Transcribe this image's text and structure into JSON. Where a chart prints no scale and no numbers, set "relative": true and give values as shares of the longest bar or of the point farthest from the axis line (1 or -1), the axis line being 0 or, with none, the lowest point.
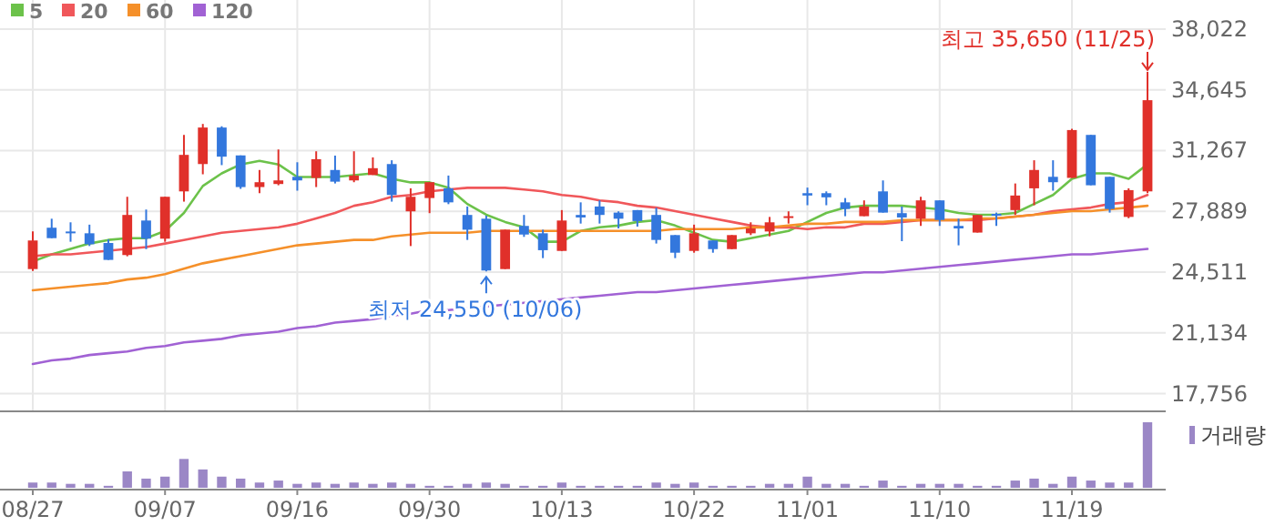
{
  "chart_data": [
    {
      "type": "candlestick",
      "categories": [
        null,
        null,
        null,
        null,
        null,
        null,
        null,
        null,
        null,
        null,
        null,
        null,
        null,
        null,
        null,
        null,
        null,
        null,
        null,
        null,
        null,
        null,
        null,
        null,
        null,
        null,
        null,
        null,
        null,
        null,
        null,
        null,
        null,
        null,
        null,
        null,
        null,
        null,
        null,
        null,
        null,
        null,
        null,
        null,
        null,
        null,
        null,
        null,
        null,
        null,
        null,
        null,
        null,
        null,
        null,
        null,
        null,
        null,
        null,
        null
      ],
      "ohlc": [
        [
          24680,
          26770,
          24580,
          26270
        ],
        [
          26980,
          27480,
          26400,
          26400
        ],
        [
          26770,
          27280,
          26200,
          26710
        ],
        [
          26670,
          27150,
          25960,
          26060
        ],
        [
          26130,
          26330,
          25190,
          25190
        ],
        [
          25460,
          28700,
          25390,
          27690
        ],
        [
          27380,
          27990,
          25790,
          26370
        ],
        [
          26370,
          28700,
          26200,
          28700
        ],
        [
          29000,
          32140,
          28430,
          31030
        ],
        [
          30520,
          32750,
          29950,
          32550
        ],
        [
          32550,
          32620,
          30460,
          30930
        ],
        [
          31000,
          31000,
          29140,
          29240
        ],
        [
          29240,
          30190,
          28900,
          29510
        ],
        [
          29410,
          31330,
          29340,
          29610
        ],
        [
          29810,
          30620,
          29040,
          29610
        ],
        [
          29750,
          31230,
          29240,
          30790
        ],
        [
          30190,
          30990,
          29440,
          29540
        ],
        [
          29610,
          31230,
          29510,
          29880
        ],
        [
          29910,
          30890,
          29910,
          30290
        ],
        [
          30520,
          30730,
          28430,
          28800
        ],
        [
          27890,
          29170,
          25960,
          28700
        ],
        [
          28630,
          29510,
          27790,
          29510
        ],
        [
          29170,
          29880,
          28290,
          28390
        ],
        [
          27690,
          28160,
          26300,
          26870
        ],
        [
          27480,
          27650,
          24550,
          24600
        ],
        [
          24680,
          26870,
          24680,
          26870
        ],
        [
          27080,
          27690,
          26470,
          26600
        ],
        [
          26670,
          26870,
          25290,
          25730
        ],
        [
          25690,
          27960,
          25690,
          27380
        ],
        [
          27690,
          28390,
          27210,
          27550
        ],
        [
          28160,
          28500,
          27210,
          27690
        ],
        [
          27820,
          27890,
          26940,
          27480
        ],
        [
          27960,
          27960,
          27040,
          27350
        ],
        [
          27690,
          28090,
          26100,
          26300
        ],
        [
          26570,
          26570,
          25290,
          25590
        ],
        [
          25690,
          27150,
          25590,
          26670
        ],
        [
          26270,
          26270,
          25590,
          25790
        ],
        [
          25790,
          26570,
          25790,
          26570
        ],
        [
          26670,
          27280,
          26570,
          26940
        ],
        [
          26770,
          27580,
          26500,
          27280
        ],
        [
          27550,
          27890,
          27210,
          27620
        ],
        [
          28900,
          29210,
          28230,
          28770
        ],
        [
          28900,
          29000,
          28230,
          28670
        ],
        [
          28390,
          28630,
          27620,
          28020
        ],
        [
          27620,
          28500,
          27620,
          28160
        ],
        [
          29000,
          29610,
          27820,
          27820
        ],
        [
          27790,
          28160,
          26230,
          27550
        ],
        [
          27480,
          28700,
          27080,
          28500
        ],
        [
          28500,
          28500,
          27080,
          27410
        ],
        [
          27080,
          27480,
          26000,
          26940
        ],
        [
          26710,
          27690,
          26710,
          27690
        ],
        [
          27750,
          27820,
          27080,
          27690
        ],
        [
          27960,
          29440,
          27690,
          28770
        ],
        [
          29170,
          30730,
          28230,
          30190
        ],
        [
          29810,
          30730,
          29040,
          29510
        ],
        [
          29750,
          32480,
          29750,
          32410
        ],
        [
          32140,
          32140,
          29340,
          29340
        ],
        [
          29810,
          29810,
          27820,
          28020
        ],
        [
          27580,
          29170,
          27510,
          29070
        ],
        [
          29000,
          35650,
          28900,
          34070
        ]
      ],
      "series": [
        {
          "name": "5",
          "type": "line",
          "color": "#6cc24a",
          "values": [
            25100,
            25500,
            25800,
            26100,
            26300,
            26400,
            26400,
            26800,
            27800,
            29300,
            30000,
            30500,
            30700,
            30500,
            29800,
            29800,
            29800,
            29900,
            30000,
            29700,
            29500,
            29500,
            29200,
            28300,
            27700,
            27300,
            27000,
            26200,
            26200,
            26800,
            27000,
            27100,
            27300,
            27400,
            27100,
            26700,
            26300,
            26200,
            26400,
            26600,
            26800,
            27300,
            27800,
            28100,
            28200,
            28200,
            28200,
            28100,
            28000,
            27800,
            27700,
            27700,
            27800,
            28300,
            28800,
            29700,
            30000,
            30000,
            29700,
            30500
          ]
        },
        {
          "name": "20",
          "type": "line",
          "color": "#f0575a",
          "values": [
            25400,
            25500,
            25500,
            25600,
            25700,
            25800,
            25900,
            26100,
            26300,
            26500,
            26700,
            26800,
            26900,
            27000,
            27200,
            27500,
            27800,
            28200,
            28400,
            28700,
            28800,
            29000,
            29100,
            29200,
            29200,
            29200,
            29100,
            29000,
            28800,
            28700,
            28500,
            28400,
            28200,
            28100,
            27900,
            27700,
            27500,
            27300,
            27100,
            27000,
            27000,
            26900,
            27000,
            27000,
            27200,
            27200,
            27300,
            27400,
            27400,
            27400,
            27400,
            27500,
            27600,
            27700,
            27900,
            28000,
            28100,
            28300,
            28400,
            28800
          ]
        },
        {
          "name": "60",
          "type": "line",
          "color": "#f5902a",
          "values": [
            23500,
            23600,
            23700,
            23800,
            23900,
            24100,
            24200,
            24400,
            24700,
            25000,
            25200,
            25400,
            25600,
            25800,
            26000,
            26100,
            26200,
            26300,
            26300,
            26500,
            26600,
            26700,
            26700,
            26700,
            26800,
            26800,
            26800,
            26800,
            26800,
            26800,
            26800,
            26800,
            26800,
            26800,
            26900,
            26900,
            26900,
            26900,
            27000,
            27000,
            27100,
            27200,
            27200,
            27300,
            27300,
            27300,
            27400,
            27400,
            27400,
            27400,
            27500,
            27500,
            27600,
            27700,
            27800,
            27900,
            27900,
            28000,
            28100,
            28200
          ]
        },
        {
          "name": "120",
          "type": "line",
          "color": "#a162d4",
          "values": [
            19400,
            19600,
            19700,
            19900,
            20000,
            20100,
            20300,
            20400,
            20600,
            20700,
            20800,
            21000,
            21100,
            21200,
            21400,
            21500,
            21700,
            21800,
            21900,
            22100,
            22200,
            22400,
            22400,
            22500,
            22600,
            22700,
            22800,
            22900,
            23000,
            23100,
            23200,
            23300,
            23400,
            23400,
            23500,
            23600,
            23700,
            23800,
            23900,
            24000,
            24100,
            24200,
            24300,
            24400,
            24500,
            24500,
            24600,
            24700,
            24800,
            24900,
            25000,
            25100,
            25200,
            25300,
            25400,
            25500,
            25500,
            25600,
            25700,
            25800
          ]
        }
      ],
      "ylim": [
        16770,
        38022
      ],
      "yticks": [
        {
          "value": 38022,
          "label": "38,022"
        },
        {
          "value": 34645,
          "label": "34,645"
        },
        {
          "value": 31267,
          "label": "31,267"
        },
        {
          "value": 27889,
          "label": "27,889"
        },
        {
          "value": 24511,
          "label": "24,511"
        },
        {
          "value": 21134,
          "label": "21,134"
        },
        {
          "value": 17756,
          "label": "17,756"
        }
      ],
      "tick_labels": "y",
      "grid": true,
      "legend": "top left",
      "annotations": [
        "최고 35,650 (11/25)",
        "최저 24,550 (10/06)"
      ]
    },
    {
      "type": "bar",
      "categories": [
        "08/27",
        null,
        null,
        null,
        null,
        null,
        null,
        "09/07",
        null,
        null,
        null,
        null,
        null,
        null,
        "09/16",
        null,
        null,
        null,
        null,
        null,
        null,
        "09/30",
        null,
        null,
        null,
        null,
        null,
        null,
        "10/13",
        null,
        null,
        null,
        null,
        null,
        null,
        "10/22",
        null,
        null,
        null,
        null,
        null,
        "11/01",
        null,
        null,
        null,
        null,
        null,
        null,
        "11/10",
        null,
        null,
        null,
        null,
        null,
        null,
        "11/19",
        null,
        null,
        null,
        null
      ],
      "series": [
        {
          "name": "거래량",
          "color": "#9b87c6",
          "values": [
            0.08,
            0.08,
            0.06,
            0.06,
            0.03,
            0.25,
            0.14,
            0.17,
            0.44,
            0.28,
            0.17,
            0.14,
            0.08,
            0.11,
            0.06,
            0.08,
            0.06,
            0.08,
            0.06,
            0.08,
            0.06,
            0.03,
            0.03,
            0.06,
            0.08,
            0.06,
            0.03,
            0.03,
            0.08,
            0.03,
            0.03,
            0.03,
            0.03,
            0.08,
            0.06,
            0.08,
            0.03,
            0.03,
            0.03,
            0.06,
            0.06,
            0.17,
            0.06,
            0.06,
            0.03,
            0.11,
            0.03,
            0.06,
            0.06,
            0.06,
            0.03,
            0.03,
            0.11,
            0.14,
            0.06,
            0.17,
            0.11,
            0.08,
            0.08,
            1
          ]
        }
      ],
      "relative": true,
      "tick_labels": "x",
      "legend": "top right"
    }
  ]
}
